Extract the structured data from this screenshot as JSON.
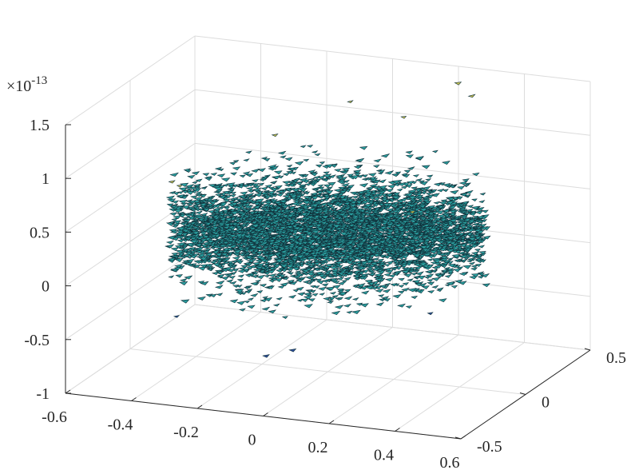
{
  "chart_data": {
    "type": "scatter3d",
    "title": "",
    "xlabel": "",
    "ylabel": "",
    "zlabel": "",
    "xlim": [
      -0.6,
      0.6
    ],
    "ylim": [
      -0.5,
      0.5
    ],
    "zlim": [
      -1e-13,
      1.5e-13
    ],
    "x_ticks": [
      "-0.6",
      "-0.4",
      "-0.2",
      "0",
      "0.2",
      "0.4",
      "0.6"
    ],
    "y_ticks": [
      "-0.5",
      "0",
      "0.5"
    ],
    "z_ticks": [
      "-1",
      "-0.5",
      "0",
      "0.5",
      "1",
      "1.5"
    ],
    "z_exponent_label": "×10",
    "z_exponent_power": "-13",
    "grid": true,
    "description_of_data": "dense cloud of small triangular surface fragments forming a disk of radius ~0.45 centered at origin; z values near 3e-14 with spread growing toward the rim",
    "disk_radius": 0.45,
    "z_center": 3e-14,
    "z_spread_inner": 2e-15,
    "z_spread_outer": 4e-14,
    "outliers": [
      {
        "x": 0.23,
        "y": 0.42,
        "z": 1.42e-13
      },
      {
        "x": 0.26,
        "y": 0.45,
        "z": 1.29e-13
      },
      {
        "x": -0.05,
        "y": 0.3,
        "z": 1.25e-13
      },
      {
        "x": 0.12,
        "y": 0.28,
        "z": 1.18e-13
      },
      {
        "x": -0.2,
        "y": 0.1,
        "z": 1.05e-13
      },
      {
        "x": -0.42,
        "y": -0.1,
        "z": -5.5e-14
      },
      {
        "x": -0.05,
        "y": -0.35,
        "z": -5.8e-14
      },
      {
        "x": 0.05,
        "y": -0.4,
        "z": -4.5e-14
      },
      {
        "x": 0.35,
        "y": -0.1,
        "z": -2.5e-14
      }
    ],
    "colors": {
      "face": "#2a9d9d",
      "edge": "#10303a",
      "high": "#c8c050",
      "low": "#3050a0"
    }
  }
}
